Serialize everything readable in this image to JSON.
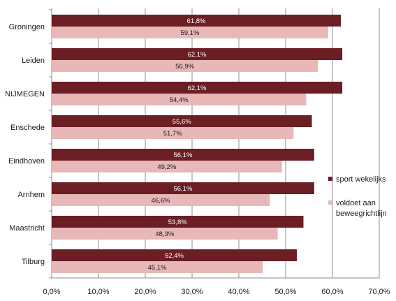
{
  "chart_data": {
    "type": "bar",
    "orientation": "horizontal",
    "categories": [
      "Groningen",
      "Leiden",
      "NIJMEGEN",
      "Enschede",
      "Eindhoven",
      "Arnhem",
      "Maastricht",
      "Tilburg"
    ],
    "series": [
      {
        "name": "sport wekelijks",
        "color": "#6b1e23",
        "values": [
          61.8,
          62.1,
          62.1,
          55.6,
          56.1,
          56.1,
          53.8,
          52.4
        ],
        "labels": [
          "61,8%",
          "62,1%",
          "62,1%",
          "55,6%",
          "56,1%",
          "56,1%",
          "53,8%",
          "52,4%"
        ]
      },
      {
        "name": "voldoet aan beweegrichtlijn",
        "color": "#e8b8b8",
        "values": [
          59.1,
          56.9,
          54.4,
          51.7,
          49.2,
          46.6,
          48.3,
          45.1
        ],
        "labels": [
          "59,1%",
          "56,9%",
          "54,4%",
          "51,7%",
          "49,2%",
          "46,6%",
          "48,3%",
          "45,1%"
        ]
      }
    ],
    "xlim": [
      0,
      70
    ],
    "x_ticks": [
      "0,0%",
      "10,0%",
      "20,0%",
      "30,0%",
      "40,0%",
      "50,0%",
      "60,0%",
      "70,0%"
    ],
    "grid": "vertical",
    "legend_position": "right",
    "legend": {
      "series_1": "sport wekelijks",
      "series_2_line1": "voldoet aan",
      "series_2_line2": "beweegrichtlijn"
    }
  }
}
